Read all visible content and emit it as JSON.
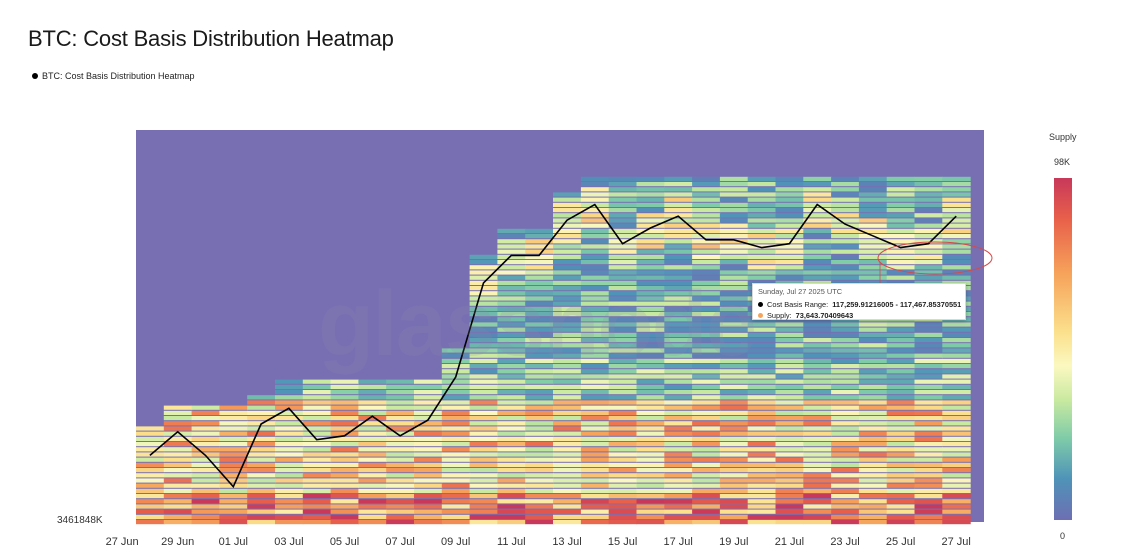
{
  "title": "BTC: Cost Basis Distribution Heatmap",
  "legend_label": "BTC: Cost Basis Distribution Heatmap",
  "watermark": "glassnode",
  "colorbar": {
    "title": "Supply",
    "max_label": "98K",
    "min_label": "0",
    "colors": [
      "#c8385a",
      "#e8604a",
      "#f6a35b",
      "#fbe08c",
      "#fbf8c0",
      "#c8e9a0",
      "#7fcca8",
      "#4f93b8",
      "#6d6fb3"
    ]
  },
  "y_min_label": "3461848K",
  "tooltip": {
    "date": "Sunday, Jul 27 2025 UTC",
    "range_label": "Cost Basis Range:",
    "range_value": "117,259.91216005 - 117,467.85370551",
    "supply_label": "Supply:",
    "supply_value": "73,643.70409643",
    "range_dot_color": "#000000",
    "supply_dot_color": "#f6a35b"
  },
  "chart_data": {
    "type": "heatmap",
    "title": "BTC: Cost Basis Distribution Heatmap",
    "x_ticks": [
      "27 Jun",
      "29 Jun",
      "01 Jul",
      "03 Jul",
      "05 Jul",
      "07 Jul",
      "09 Jul",
      "11 Jul",
      "13 Jul",
      "15 Jul",
      "17 Jul",
      "19 Jul",
      "21 Jul",
      "23 Jul",
      "25 Jul",
      "27 Jul"
    ],
    "days": [
      "28 Jun",
      "29 Jun",
      "30 Jun",
      "01 Jul",
      "02 Jul",
      "03 Jul",
      "04 Jul",
      "05 Jul",
      "06 Jul",
      "07 Jul",
      "08 Jul",
      "09 Jul",
      "10 Jul",
      "11 Jul",
      "12 Jul",
      "13 Jul",
      "14 Jul",
      "15 Jul",
      "16 Jul",
      "17 Jul",
      "18 Jul",
      "19 Jul",
      "20 Jul",
      "21 Jul",
      "22 Jul",
      "23 Jul",
      "24 Jul",
      "25 Jul",
      "26 Jul",
      "27 Jul"
    ],
    "line_series": {
      "name": "BTC: Cost Basis Distribution Heatmap",
      "color": "#000000",
      "values": [
        0.17,
        0.23,
        0.17,
        0.09,
        0.25,
        0.29,
        0.21,
        0.22,
        0.27,
        0.22,
        0.26,
        0.37,
        0.61,
        0.68,
        0.68,
        0.77,
        0.81,
        0.71,
        0.75,
        0.78,
        0.72,
        0.72,
        0.7,
        0.71,
        0.81,
        0.76,
        0.73,
        0.7,
        0.71,
        0.78
      ]
    },
    "supply_max": 98000,
    "colorscale": "spectral (low=purple, high=red)",
    "highlight": {
      "date": "27 Jul",
      "cost_basis_range": [
        117259.91216005,
        117467.85370551
      ],
      "supply": 73643.70409643
    }
  }
}
